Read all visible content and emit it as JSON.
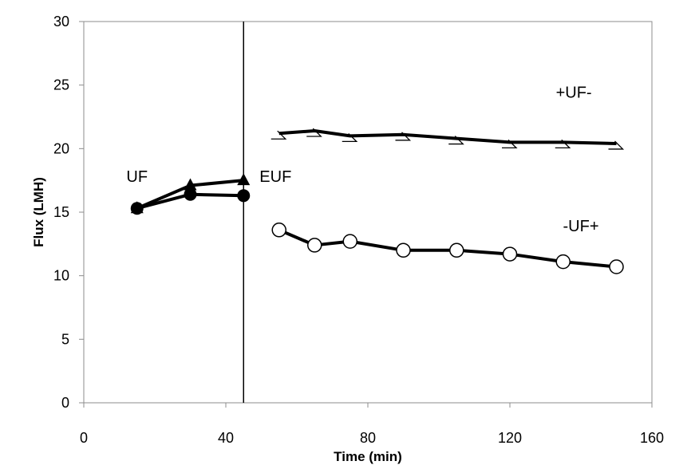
{
  "chart_data": {
    "type": "line",
    "xlabel": "Time (min)",
    "ylabel": "Flux (LMH)",
    "xlim": [
      0,
      160
    ],
    "ylim": [
      0,
      30
    ],
    "xticks": [
      0,
      40,
      80,
      120,
      160
    ],
    "yticks": [
      0,
      5,
      10,
      15,
      20,
      25,
      30
    ],
    "grid": false,
    "vline_x": 45,
    "series": [
      {
        "marker": "triangle",
        "x": [
          15,
          30,
          45
        ],
        "values": [
          15.3,
          17.1,
          17.5
        ]
      },
      {
        "marker": "circle-filled",
        "x": [
          15,
          30,
          45
        ],
        "values": [
          15.3,
          16.4,
          16.3
        ]
      },
      {
        "marker": "dash",
        "x": [
          55,
          65,
          75,
          90,
          105,
          120,
          135,
          150
        ],
        "values": [
          21.2,
          21.4,
          21.0,
          21.1,
          20.8,
          20.5,
          20.5,
          20.4
        ]
      },
      {
        "marker": "circle-open",
        "x": [
          55,
          65,
          75,
          90,
          105,
          120,
          135,
          150
        ],
        "values": [
          13.6,
          12.4,
          12.7,
          12.0,
          12.0,
          11.7,
          11.1,
          10.7
        ]
      }
    ],
    "annotations": [
      {
        "text": "UF",
        "x": 15,
        "y": 17.4
      },
      {
        "text": "EUF",
        "x": 54,
        "y": 17.4
      },
      {
        "text": "+UF-",
        "x": 138,
        "y": 24.0
      },
      {
        "text": "-UF+",
        "x": 140,
        "y": 13.5
      }
    ]
  }
}
